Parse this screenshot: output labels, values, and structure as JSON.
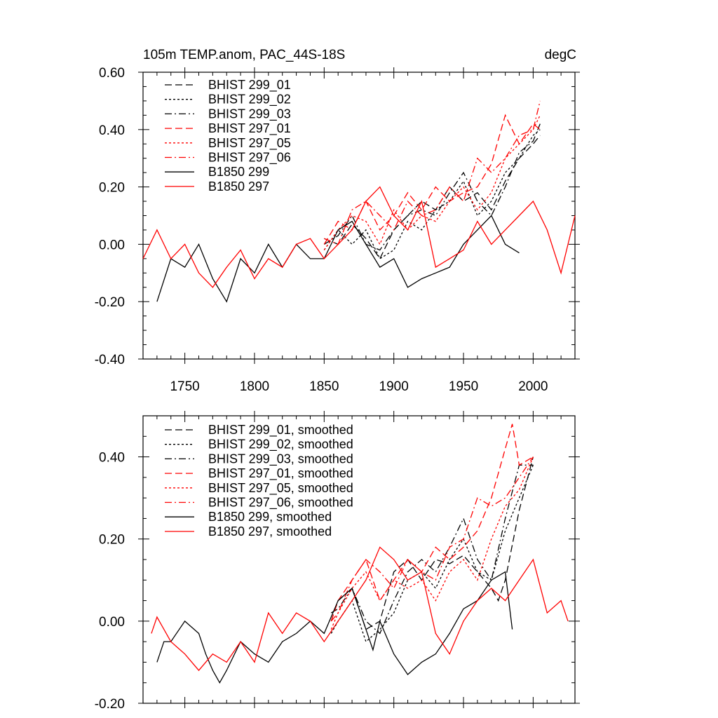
{
  "header": {
    "title": "105m TEMP.anom, PAC_44S-18S",
    "units": "degC"
  },
  "chart_data": [
    {
      "type": "line",
      "title": "105m TEMP.anom, PAC_44S-18S",
      "units": "degC",
      "xlabel": "",
      "ylabel": "",
      "xlim": [
        1720,
        2030
      ],
      "ylim": [
        -0.4,
        0.6
      ],
      "x_ticks": [
        1750,
        1800,
        1850,
        1900,
        1950,
        2000
      ],
      "x_tick_labels": [
        "1750",
        "1800",
        "1850",
        "1900",
        "1950",
        "2000"
      ],
      "y_ticks": [
        -0.4,
        -0.2,
        0.0,
        0.2,
        0.4,
        0.6
      ],
      "y_tick_labels": [
        "-0.40",
        "-0.20",
        "0.00",
        "0.20",
        "0.40",
        "0.60"
      ],
      "grid": false,
      "legend_position": "top-left",
      "series": [
        {
          "name": "BHIST 299_01",
          "color": "#000000",
          "dash": "long-dash",
          "x": [
            1850,
            1860,
            1870,
            1880,
            1890,
            1900,
            1910,
            1920,
            1930,
            1940,
            1950,
            1960,
            1970,
            1980,
            1990,
            2000,
            2005
          ],
          "values": [
            0.02,
            0.0,
            0.07,
            0.02,
            -0.05,
            0.05,
            0.1,
            0.15,
            0.12,
            0.2,
            0.15,
            0.18,
            0.12,
            0.22,
            0.3,
            0.35,
            0.38
          ]
        },
        {
          "name": "BHIST 299_02",
          "color": "#000000",
          "dash": "dotted",
          "x": [
            1850,
            1860,
            1870,
            1880,
            1890,
            1900,
            1910,
            1920,
            1930,
            1940,
            1950,
            1960,
            1970,
            1980,
            1990,
            2000,
            2005
          ],
          "values": [
            -0.02,
            0.05,
            0.0,
            0.05,
            -0.05,
            -0.02,
            0.08,
            0.05,
            0.12,
            0.15,
            0.22,
            0.1,
            0.15,
            0.25,
            0.3,
            0.38,
            0.4
          ]
        },
        {
          "name": "BHIST 299_03",
          "color": "#000000",
          "dash": "dash-dot",
          "x": [
            1850,
            1860,
            1870,
            1880,
            1890,
            1900,
            1910,
            1920,
            1930,
            1940,
            1950,
            1960,
            1970,
            1980,
            1990,
            2000,
            2005
          ],
          "values": [
            0.0,
            0.03,
            0.1,
            0.0,
            -0.02,
            0.05,
            0.1,
            0.12,
            0.1,
            0.18,
            0.25,
            0.15,
            0.1,
            0.2,
            0.32,
            0.36,
            0.42
          ]
        },
        {
          "name": "BHIST 297_01",
          "color": "#ff0000",
          "dash": "long-dash",
          "x": [
            1850,
            1860,
            1870,
            1880,
            1890,
            1900,
            1910,
            1920,
            1930,
            1940,
            1950,
            1960,
            1970,
            1980,
            1990,
            2000,
            2005
          ],
          "values": [
            0.0,
            0.08,
            0.05,
            0.15,
            0.05,
            0.1,
            0.18,
            0.12,
            0.2,
            0.15,
            0.18,
            0.2,
            0.28,
            0.45,
            0.35,
            0.42,
            0.4
          ]
        },
        {
          "name": "BHIST 297_05",
          "color": "#ff0000",
          "dash": "dotted",
          "x": [
            1850,
            1860,
            1870,
            1880,
            1890,
            1900,
            1910,
            1920,
            1930,
            1940,
            1950,
            1960,
            1970,
            1980,
            1990,
            2000,
            2005
          ],
          "values": [
            -0.02,
            0.05,
            0.1,
            0.08,
            0.0,
            0.12,
            0.05,
            0.1,
            0.08,
            0.15,
            0.2,
            0.12,
            0.18,
            0.3,
            0.35,
            0.4,
            0.45
          ]
        },
        {
          "name": "BHIST 297_06",
          "color": "#ff0000",
          "dash": "dash-dot",
          "x": [
            1850,
            1860,
            1870,
            1880,
            1890,
            1900,
            1910,
            1920,
            1930,
            1940,
            1950,
            1960,
            1970,
            1980,
            1990,
            2000,
            2005
          ],
          "values": [
            0.02,
            0.0,
            0.12,
            0.15,
            0.1,
            0.05,
            0.15,
            0.1,
            0.12,
            0.2,
            0.15,
            0.3,
            0.25,
            0.3,
            0.38,
            0.4,
            0.5
          ]
        },
        {
          "name": "B1850 299",
          "color": "#000000",
          "dash": "solid",
          "x": [
            1730,
            1740,
            1750,
            1760,
            1770,
            1780,
            1790,
            1800,
            1810,
            1820,
            1830,
            1840,
            1850,
            1860,
            1870,
            1880,
            1890,
            1900,
            1910,
            1920,
            1930,
            1940,
            1950,
            1960,
            1970,
            1980,
            1990
          ],
          "values": [
            -0.2,
            -0.05,
            -0.08,
            0.0,
            -0.12,
            -0.2,
            -0.05,
            -0.1,
            0.0,
            -0.08,
            0.0,
            -0.05,
            -0.05,
            0.05,
            0.08,
            0.0,
            -0.08,
            -0.05,
            -0.15,
            -0.12,
            -0.1,
            -0.08,
            0.0,
            0.05,
            0.1,
            0.0,
            -0.03
          ]
        },
        {
          "name": "B1850 297",
          "color": "#ff0000",
          "dash": "solid",
          "x": [
            1720,
            1730,
            1740,
            1750,
            1760,
            1770,
            1780,
            1790,
            1800,
            1810,
            1820,
            1830,
            1840,
            1850,
            1860,
            1870,
            1880,
            1890,
            1900,
            1910,
            1920,
            1930,
            1940,
            1950,
            1960,
            1970,
            1980,
            1990,
            2000,
            2010,
            2020,
            2030
          ],
          "values": [
            -0.05,
            0.05,
            -0.05,
            0.0,
            -0.1,
            -0.15,
            -0.08,
            -0.02,
            -0.12,
            -0.05,
            -0.08,
            0.0,
            0.02,
            -0.05,
            0.0,
            0.05,
            0.15,
            0.2,
            0.1,
            0.05,
            0.15,
            -0.08,
            -0.05,
            -0.02,
            0.08,
            0.0,
            0.05,
            0.1,
            0.15,
            0.05,
            -0.1,
            0.1
          ]
        }
      ]
    },
    {
      "type": "line",
      "title": "",
      "xlabel": "",
      "ylabel": "",
      "xlim": [
        1720,
        2030
      ],
      "ylim": [
        -0.2,
        0.5
      ],
      "x_ticks": [
        1750,
        1800,
        1850,
        1900,
        1950,
        2000
      ],
      "x_tick_labels": [],
      "y_ticks": [
        -0.2,
        0.0,
        0.2,
        0.4
      ],
      "y_tick_labels": [
        "-0.20",
        "0.00",
        "0.20",
        "0.40"
      ],
      "grid": false,
      "legend_position": "top-left",
      "series": [
        {
          "name": "BHIST 299_01, smoothed",
          "color": "#000000",
          "dash": "long-dash",
          "x": [
            1855,
            1860,
            1870,
            1880,
            1890,
            1900,
            1910,
            1920,
            1930,
            1940,
            1950,
            1960,
            1970,
            1975,
            1980,
            1990,
            2000
          ],
          "values": [
            0.0,
            0.05,
            0.08,
            -0.02,
            0.0,
            0.12,
            0.15,
            0.1,
            0.15,
            0.14,
            0.16,
            0.12,
            0.08,
            0.05,
            0.1,
            0.27,
            0.4
          ]
        },
        {
          "name": "BHIST 299_02, smoothed",
          "color": "#000000",
          "dash": "dotted",
          "x": [
            1855,
            1860,
            1870,
            1880,
            1890,
            1900,
            1910,
            1920,
            1930,
            1940,
            1950,
            1960,
            1970,
            1980,
            1990,
            2000
          ],
          "values": [
            -0.03,
            0.0,
            0.05,
            -0.05,
            -0.02,
            0.02,
            0.1,
            0.12,
            0.08,
            0.15,
            0.2,
            0.12,
            0.1,
            0.22,
            0.3,
            0.38
          ]
        },
        {
          "name": "BHIST 299_03, smoothed",
          "color": "#000000",
          "dash": "dash-dot",
          "x": [
            1855,
            1860,
            1870,
            1880,
            1890,
            1900,
            1910,
            1920,
            1930,
            1940,
            1950,
            1960,
            1970,
            1980,
            1990,
            2000
          ],
          "values": [
            0.02,
            0.03,
            0.08,
            0.0,
            -0.03,
            0.05,
            0.12,
            0.15,
            0.12,
            0.18,
            0.25,
            0.15,
            0.1,
            0.25,
            0.38,
            0.38
          ]
        },
        {
          "name": "BHIST 297_01, smoothed",
          "color": "#ff0000",
          "dash": "long-dash",
          "x": [
            1855,
            1860,
            1870,
            1880,
            1890,
            1900,
            1910,
            1920,
            1930,
            1940,
            1950,
            1960,
            1970,
            1980,
            1985,
            1990,
            2000
          ],
          "values": [
            0.0,
            0.05,
            0.1,
            0.15,
            0.05,
            0.1,
            0.15,
            0.12,
            0.18,
            0.15,
            0.18,
            0.22,
            0.3,
            0.42,
            0.48,
            0.38,
            0.4
          ]
        },
        {
          "name": "BHIST 297_05, smoothed",
          "color": "#ff0000",
          "dash": "dotted",
          "x": [
            1855,
            1860,
            1870,
            1880,
            1890,
            1900,
            1910,
            1920,
            1930,
            1940,
            1950,
            1960,
            1970,
            1980,
            1990,
            2000
          ],
          "values": [
            -0.02,
            0.02,
            0.08,
            0.12,
            0.05,
            0.1,
            0.08,
            0.1,
            0.05,
            0.12,
            0.15,
            0.1,
            0.2,
            0.28,
            0.32,
            0.4
          ]
        },
        {
          "name": "BHIST 297_06, smoothed",
          "color": "#ff0000",
          "dash": "dash-dot",
          "x": [
            1855,
            1860,
            1870,
            1880,
            1890,
            1900,
            1910,
            1920,
            1930,
            1940,
            1950,
            1960,
            1970,
            1980,
            1990,
            2000
          ],
          "values": [
            0.0,
            0.02,
            0.1,
            0.15,
            0.12,
            0.08,
            0.15,
            0.12,
            0.1,
            0.18,
            0.2,
            0.3,
            0.28,
            0.3,
            0.35,
            0.4
          ]
        },
        {
          "name": "B1850 299, smoothed",
          "color": "#000000",
          "dash": "solid",
          "x": [
            1730,
            1735,
            1740,
            1750,
            1760,
            1765,
            1770,
            1775,
            1780,
            1790,
            1800,
            1810,
            1820,
            1830,
            1840,
            1850,
            1860,
            1870,
            1880,
            1885,
            1890,
            1900,
            1910,
            1920,
            1930,
            1940,
            1950,
            1960,
            1970,
            1980,
            1985
          ],
          "values": [
            -0.1,
            -0.05,
            -0.05,
            0.0,
            -0.03,
            -0.08,
            -0.12,
            -0.15,
            -0.12,
            -0.05,
            -0.08,
            -0.1,
            -0.05,
            -0.03,
            0.0,
            -0.03,
            0.05,
            0.08,
            -0.02,
            -0.07,
            0.0,
            -0.08,
            -0.13,
            -0.1,
            -0.08,
            -0.03,
            0.03,
            0.05,
            0.1,
            0.12,
            -0.02
          ]
        },
        {
          "name": "B1850 297, smoothed",
          "color": "#ff0000",
          "dash": "solid",
          "x": [
            1726,
            1730,
            1740,
            1750,
            1760,
            1770,
            1780,
            1790,
            1800,
            1810,
            1820,
            1830,
            1840,
            1850,
            1860,
            1870,
            1880,
            1890,
            1900,
            1910,
            1920,
            1930,
            1940,
            1950,
            1960,
            1970,
            1980,
            1990,
            2000,
            2010,
            2020,
            2025
          ],
          "values": [
            -0.03,
            0.01,
            -0.05,
            -0.08,
            -0.12,
            -0.08,
            -0.1,
            -0.05,
            -0.1,
            0.02,
            -0.03,
            0.02,
            0.0,
            -0.05,
            0.0,
            0.05,
            0.1,
            0.18,
            0.15,
            0.1,
            0.12,
            -0.03,
            -0.08,
            0.0,
            0.05,
            0.08,
            0.05,
            0.1,
            0.15,
            0.02,
            0.05,
            0.0
          ]
        }
      ]
    }
  ]
}
